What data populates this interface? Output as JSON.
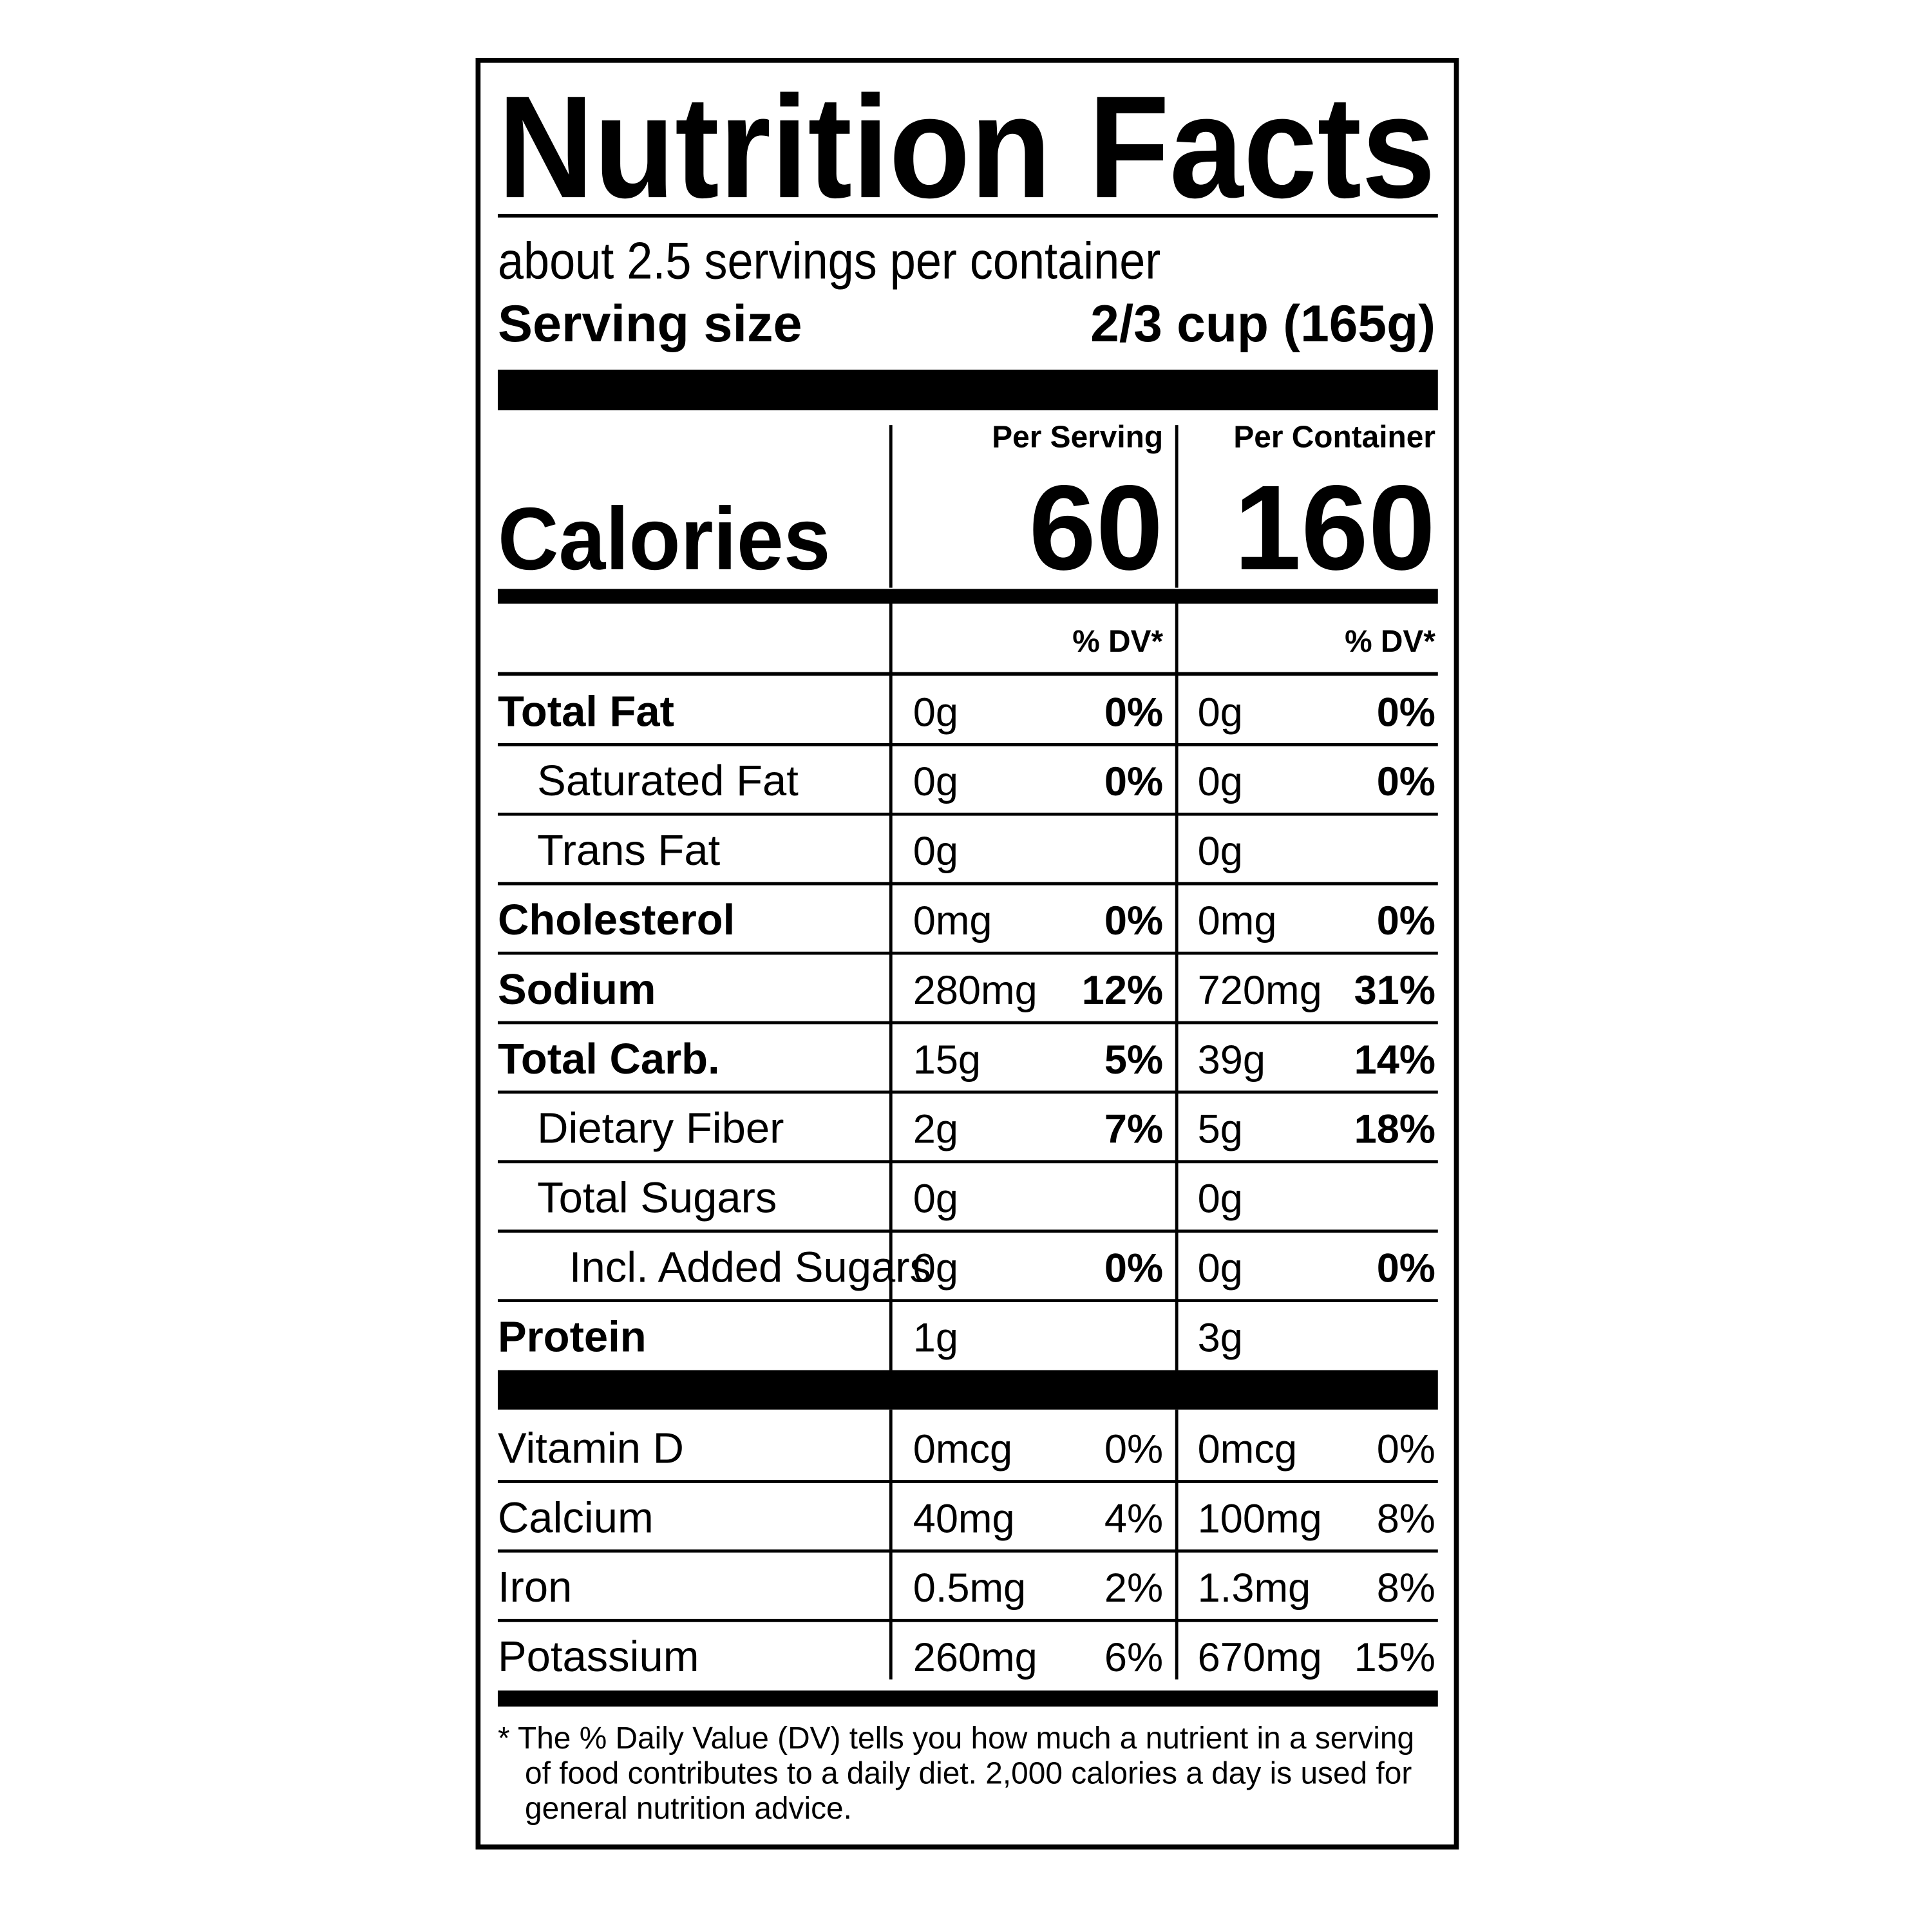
{
  "header": {
    "title": "Nutrition Facts",
    "servings": "about 2.5 servings per container",
    "serving_size_label": "Serving size",
    "serving_size_value": "2/3 cup (165g)"
  },
  "columns": [
    "Per Serving",
    "Per Container"
  ],
  "calories": {
    "label": "Calories",
    "values": [
      "60",
      "160"
    ]
  },
  "dv_header": [
    "% DV*",
    "% DV*"
  ],
  "nutrients": [
    {
      "label": "Total Fat",
      "level": 0,
      "bold": true,
      "amounts": [
        "0g",
        "0g"
      ],
      "dv": [
        "0%",
        "0%"
      ]
    },
    {
      "label": "Saturated Fat",
      "level": 1,
      "bold": false,
      "amounts": [
        "0g",
        "0g"
      ],
      "dv": [
        "0%",
        "0%"
      ]
    },
    {
      "label": "Trans Fat",
      "level": 1,
      "bold": false,
      "amounts": [
        "0g",
        "0g"
      ],
      "dv": [
        null,
        null
      ]
    },
    {
      "label": "Cholesterol",
      "level": 0,
      "bold": true,
      "amounts": [
        "0mg",
        "0mg"
      ],
      "dv": [
        "0%",
        "0%"
      ]
    },
    {
      "label": "Sodium",
      "level": 0,
      "bold": true,
      "amounts": [
        "280mg",
        "720mg"
      ],
      "dv": [
        "12%",
        "31%"
      ]
    },
    {
      "label": "Total Carb.",
      "level": 0,
      "bold": true,
      "amounts": [
        "15g",
        "39g"
      ],
      "dv": [
        "5%",
        "14%"
      ]
    },
    {
      "label": "Dietary Fiber",
      "level": 1,
      "bold": false,
      "amounts": [
        "2g",
        "5g"
      ],
      "dv": [
        "7%",
        "18%"
      ]
    },
    {
      "label": "Total Sugars",
      "level": 1,
      "bold": false,
      "amounts": [
        "0g",
        "0g"
      ],
      "dv": [
        null,
        null
      ]
    },
    {
      "label": "Incl. Added Sugars",
      "level": 2,
      "bold": false,
      "amounts": [
        "0g",
        "0g"
      ],
      "dv": [
        "0%",
        "0%"
      ]
    },
    {
      "label": "Protein",
      "level": 0,
      "bold": true,
      "amounts": [
        "1g",
        "3g"
      ],
      "dv": [
        null,
        null
      ]
    }
  ],
  "vitamins": [
    {
      "label": "Vitamin D",
      "amounts": [
        "0mcg",
        "0mcg"
      ],
      "dv": [
        "0%",
        "0%"
      ]
    },
    {
      "label": "Calcium",
      "amounts": [
        "40mg",
        "100mg"
      ],
      "dv": [
        "4%",
        "8%"
      ]
    },
    {
      "label": "Iron",
      "amounts": [
        "0.5mg",
        "1.3mg"
      ],
      "dv": [
        "2%",
        "8%"
      ]
    },
    {
      "label": "Potassium",
      "amounts": [
        "260mg",
        "670mg"
      ],
      "dv": [
        "6%",
        "15%"
      ]
    }
  ],
  "footnote": [
    "* The % Daily Value (DV) tells you how much a nutrient in a serving",
    "of food contributes to a daily diet. 2,000 calories a day is used for",
    "general nutrition advice."
  ]
}
